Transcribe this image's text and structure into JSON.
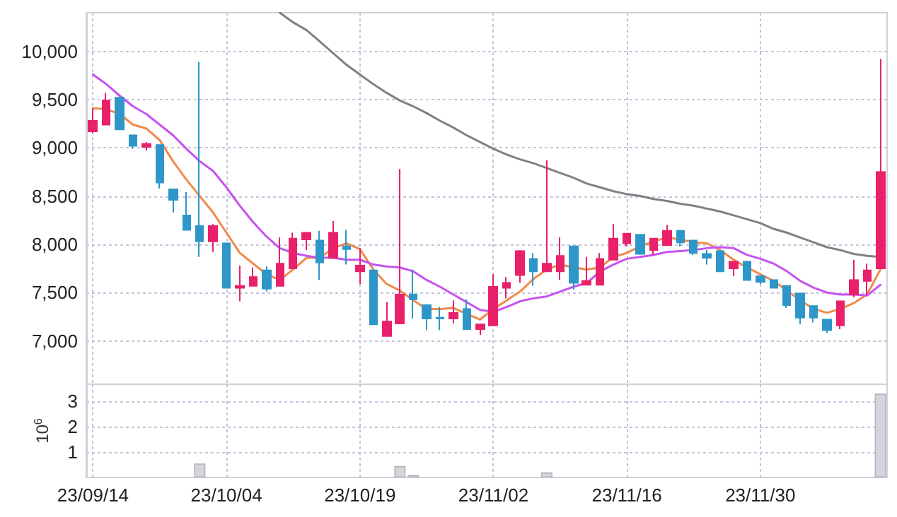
{
  "chart_data": [
    {
      "type": "candlestick",
      "categories": [
        "23/09/14",
        null,
        null,
        null,
        null,
        null,
        null,
        null,
        null,
        null,
        "23/10/04",
        null,
        null,
        null,
        null,
        null,
        null,
        null,
        null,
        null,
        "23/10/19",
        null,
        null,
        null,
        null,
        null,
        null,
        null,
        null,
        null,
        "23/11/02",
        null,
        null,
        null,
        null,
        null,
        null,
        null,
        null,
        null,
        "23/11/16",
        null,
        null,
        null,
        null,
        null,
        null,
        null,
        null,
        null,
        "23/11/30",
        null,
        null,
        null,
        null,
        null,
        null,
        null,
        null,
        null
      ],
      "ohlc": [
        [
          9170,
          9410,
          9150,
          9280
        ],
        [
          9240,
          9570,
          9240,
          9490
        ],
        [
          9520,
          9520,
          9190,
          9190
        ],
        [
          9130,
          9130,
          8990,
          9020
        ],
        [
          9010,
          9060,
          8970,
          9040
        ],
        [
          9030,
          9030,
          8580,
          8640
        ],
        [
          8570,
          8570,
          8330,
          8460
        ],
        [
          8300,
          8540,
          8150,
          8150
        ],
        [
          8190,
          9890,
          7870,
          8030
        ],
        [
          8030,
          8210,
          7920,
          8190
        ],
        [
          8010,
          8010,
          7550,
          7550
        ],
        [
          7550,
          7780,
          7410,
          7570
        ],
        [
          7570,
          7760,
          7570,
          7660
        ],
        [
          7730,
          7770,
          7510,
          7540
        ],
        [
          7570,
          8070,
          7570,
          7800
        ],
        [
          7750,
          8120,
          7750,
          8060
        ],
        [
          8050,
          8120,
          7940,
          8120
        ],
        [
          8040,
          8140,
          7630,
          7810
        ],
        [
          7860,
          8240,
          7860,
          8120
        ],
        [
          7980,
          8150,
          7790,
          7950
        ],
        [
          7720,
          7960,
          7590,
          7780
        ],
        [
          7730,
          7730,
          7170,
          7170
        ],
        [
          7050,
          7400,
          7050,
          7200
        ],
        [
          7180,
          8780,
          7180,
          7480
        ],
        [
          7480,
          7740,
          7230,
          7430
        ],
        [
          7370,
          7370,
          7110,
          7230
        ],
        [
          7240,
          7350,
          7110,
          7230
        ],
        [
          7230,
          7420,
          7180,
          7290
        ],
        [
          7330,
          7430,
          7120,
          7120
        ],
        [
          7120,
          7170,
          7060,
          7170
        ],
        [
          7160,
          7690,
          7160,
          7560
        ],
        [
          7550,
          7660,
          7440,
          7600
        ],
        [
          7680,
          7940,
          7600,
          7930
        ],
        [
          7850,
          7910,
          7570,
          7720
        ],
        [
          7720,
          8870,
          7720,
          7800
        ],
        [
          7720,
          8070,
          7630,
          7880
        ],
        [
          7980,
          7980,
          7530,
          7600
        ],
        [
          7580,
          7870,
          7580,
          7620
        ],
        [
          7580,
          7910,
          7580,
          7850
        ],
        [
          7840,
          8210,
          7840,
          8060
        ],
        [
          8010,
          8110,
          7980,
          8110
        ],
        [
          8100,
          8100,
          7900,
          7900
        ],
        [
          7940,
          8060,
          7890,
          8060
        ],
        [
          7990,
          8200,
          7990,
          8140
        ],
        [
          8140,
          8140,
          7980,
          8020
        ],
        [
          8040,
          8040,
          7890,
          7910
        ],
        [
          7900,
          7940,
          7790,
          7860
        ],
        [
          7930,
          7930,
          7720,
          7720
        ],
        [
          7750,
          7820,
          7670,
          7820
        ],
        [
          7820,
          7820,
          7630,
          7630
        ],
        [
          7670,
          7670,
          7590,
          7610
        ],
        [
          7630,
          7630,
          7550,
          7550
        ],
        [
          7570,
          7570,
          7340,
          7370
        ],
        [
          7490,
          7490,
          7170,
          7240
        ],
        [
          7360,
          7360,
          7190,
          7240
        ],
        [
          7220,
          7220,
          7080,
          7110
        ],
        [
          7160,
          7410,
          7120,
          7410
        ],
        [
          7480,
          7840,
          7450,
          7630
        ],
        [
          7620,
          7800,
          7470,
          7730
        ],
        [
          7750,
          9920,
          7750,
          8750
        ]
      ],
      "colors": [
        "#e8216a",
        "#e8216a",
        "#2e96c8",
        "#2e96c8",
        "#e8216a",
        "#2e96c8",
        "#2e96c8",
        "#2e96c8",
        "#2e96c8",
        "#e8216a",
        "#2e96c8",
        "#e8216a",
        "#e8216a",
        "#2e96c8",
        "#e8216a",
        "#e8216a",
        "#e8216a",
        "#2e96c8",
        "#e8216a",
        "#2e96c8",
        "#e8216a",
        "#2e96c8",
        "#e8216a",
        "#e8216a",
        "#2e96c8",
        "#2e96c8",
        "#2e96c8",
        "#e8216a",
        "#2e96c8",
        "#e8216a",
        "#e8216a",
        "#e8216a",
        "#e8216a",
        "#2e96c8",
        "#e8216a",
        "#e8216a",
        "#2e96c8",
        "#e8216a",
        "#e8216a",
        "#e8216a",
        "#e8216a",
        "#2e96c8",
        "#e8216a",
        "#e8216a",
        "#2e96c8",
        "#2e96c8",
        "#2e96c8",
        "#2e96c8",
        "#e8216a",
        "#2e96c8",
        "#2e96c8",
        "#2e96c8",
        "#2e96c8",
        "#2e96c8",
        "#2e96c8",
        "#2e96c8",
        "#e8216a",
        "#e8216a",
        "#e8216a",
        "#e8216a"
      ],
      "series": [
        {
          "type": "line",
          "color": "#f08a4b",
          "values": [
            9410,
            9400,
            9350,
            9240,
            9200,
            9080,
            8860,
            8670,
            8500,
            8330,
            8120,
            7910,
            7800,
            7690,
            7630,
            7740,
            7860,
            7860,
            7960,
            8010,
            7950,
            7740,
            7590,
            7520,
            7420,
            7330,
            7330,
            7340,
            7280,
            7220,
            7330,
            7420,
            7510,
            7640,
            7740,
            7790,
            7760,
            7740,
            7760,
            7870,
            7910,
            7980,
            8030,
            8070,
            8050,
            8020,
            8010,
            7940,
            7840,
            7760,
            7690,
            7620,
            7520,
            7420,
            7330,
            7290,
            7330,
            7390,
            7480,
            7740
          ]
        },
        {
          "type": "line",
          "color": "#c653f0",
          "values": [
            9760,
            9660,
            9540,
            9430,
            9350,
            9240,
            9130,
            8990,
            8860,
            8760,
            8590,
            8400,
            8230,
            8080,
            7960,
            7910,
            7880,
            7860,
            7860,
            7840,
            7840,
            7790,
            7770,
            7760,
            7720,
            7630,
            7560,
            7480,
            7400,
            7320,
            7300,
            7350,
            7410,
            7440,
            7460,
            7510,
            7560,
            7600,
            7720,
            7790,
            7850,
            7870,
            7890,
            7920,
            7930,
            7940,
            7960,
            7970,
            7960,
            7890,
            7850,
            7800,
            7720,
            7620,
            7550,
            7500,
            7480,
            7480,
            7470,
            7580
          ]
        },
        {
          "type": "line",
          "color": "#808080",
          "values": [
            null,
            null,
            null,
            null,
            null,
            null,
            null,
            null,
            null,
            null,
            null,
            null,
            null,
            null,
            10400,
            10300,
            10220,
            10100,
            9980,
            9860,
            9760,
            9660,
            9570,
            9490,
            9430,
            9360,
            9280,
            9210,
            9130,
            9060,
            8990,
            8930,
            8880,
            8840,
            8790,
            8740,
            8690,
            8630,
            8590,
            8550,
            8520,
            8500,
            8470,
            8450,
            8420,
            8400,
            8370,
            8340,
            8300,
            8260,
            8220,
            8160,
            8120,
            8070,
            8020,
            7970,
            7940,
            7900,
            7880,
            7870
          ]
        }
      ],
      "ylim": [
        6550,
        10400
      ],
      "yticks": [
        {
          "value": 7000,
          "label": "7,000"
        },
        {
          "value": 7500,
          "label": "7,500"
        },
        {
          "value": 8000,
          "label": "8,000"
        },
        {
          "value": 8500,
          "label": "8,500"
        },
        {
          "value": 9000,
          "label": "9,000"
        },
        {
          "value": 9500,
          "label": "9,500"
        },
        {
          "value": 10000,
          "label": "10,000"
        }
      ],
      "grid": true,
      "tick_labels": "y",
      "marker": "none"
    },
    {
      "type": "bar",
      "categories": [
        "23/09/14",
        null,
        null,
        null,
        null,
        null,
        null,
        null,
        null,
        null,
        "23/10/04",
        null,
        null,
        null,
        null,
        null,
        null,
        null,
        null,
        null,
        "23/10/19",
        null,
        null,
        null,
        null,
        null,
        null,
        null,
        null,
        null,
        "23/11/02",
        null,
        null,
        null,
        null,
        null,
        null,
        null,
        null,
        null,
        "23/11/16",
        null,
        null,
        null,
        null,
        null,
        null,
        null,
        null,
        null,
        "23/11/30",
        null,
        null,
        null,
        null,
        null,
        null,
        null,
        null,
        null
      ],
      "values": [
        null,
        null,
        null,
        null,
        null,
        null,
        null,
        null,
        0.55,
        null,
        null,
        null,
        null,
        null,
        null,
        null,
        null,
        null,
        null,
        null,
        null,
        null,
        null,
        0.45,
        0.1,
        null,
        null,
        null,
        null,
        null,
        null,
        null,
        null,
        null,
        0.2,
        null,
        null,
        null,
        null,
        null,
        null,
        null,
        null,
        null,
        null,
        null,
        null,
        null,
        null,
        null,
        null,
        null,
        null,
        null,
        null,
        null,
        null,
        null,
        null,
        3.3
      ],
      "color": "#d4d4dc",
      "ylabel": "10$^{6}$",
      "ylim": [
        0,
        3.67
      ],
      "yticks": [
        1,
        2,
        3
      ],
      "grid": true
    }
  ]
}
